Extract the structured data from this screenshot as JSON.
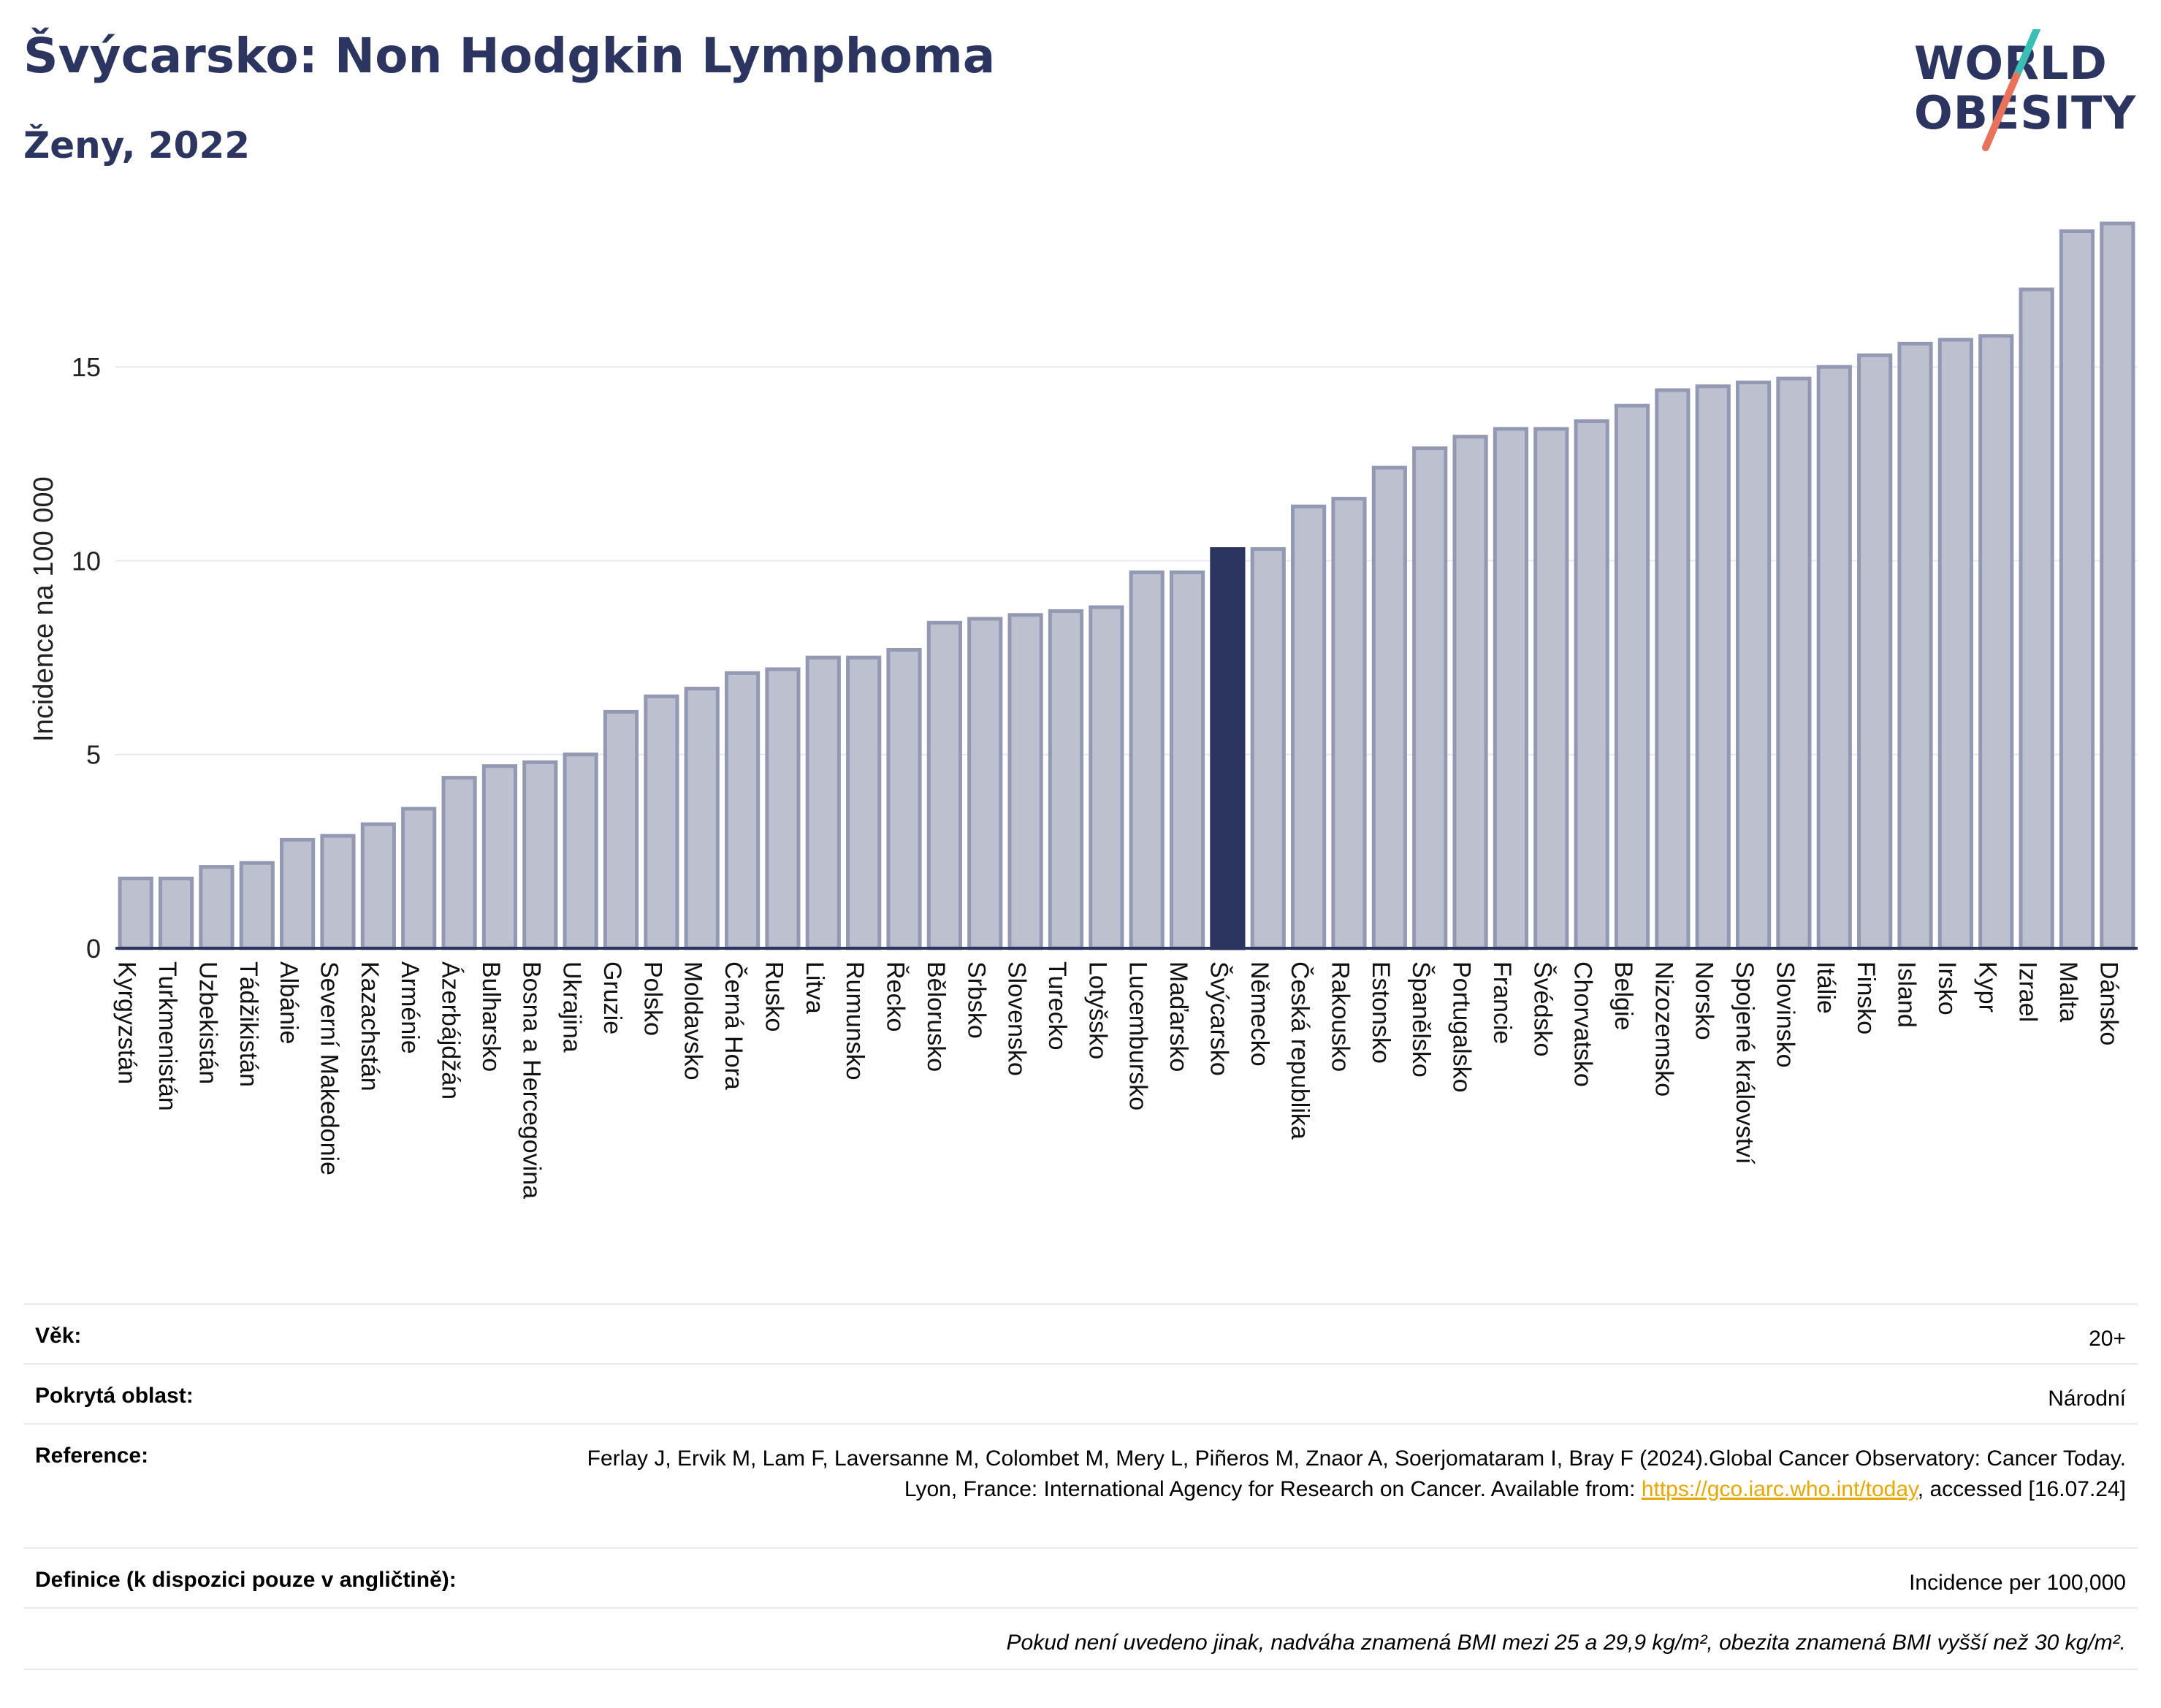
{
  "header": {
    "title": "Švýcarsko: Non Hodgkin Lymphoma",
    "subtitle": "Ženy, 2022"
  },
  "logo": {
    "line1": "WORLD",
    "line2": "OBESITY",
    "colors": {
      "text": "#2b3560",
      "slash_top": "#3bbfb5",
      "slash_bottom": "#e8735a"
    }
  },
  "chart_data": {
    "type": "bar",
    "ylabel": "Incidence na 100 000",
    "ylim": [
      0,
      19
    ],
    "yticks": [
      0,
      5,
      10,
      15
    ],
    "grid": true,
    "highlight": "Švýcarsko",
    "colors": {
      "bar": "#bcc0cf",
      "bar_edge": "#9399b3",
      "highlight": "#2b3560"
    },
    "categories": [
      "Kyrgyzstán",
      "Turkmenistán",
      "Uzbekistán",
      "Tádžikistán",
      "Albánie",
      "Severní Makedonie",
      "Kazachstán",
      "Arménie",
      "Ázerbájdžán",
      "Bulharsko",
      "Bosna a Hercegovina",
      "Ukrajina",
      "Gruzie",
      "Polsko",
      "Moldavsko",
      "Černá Hora",
      "Rusko",
      "Litva",
      "Rumunsko",
      "Řecko",
      "Bělorusko",
      "Srbsko",
      "Slovensko",
      "Turecko",
      "Lotyšsko",
      "Lucembursko",
      "Maďarsko",
      "Švýcarsko",
      "Německo",
      "Česká republika",
      "Rakousko",
      "Estonsko",
      "Španělsko",
      "Portugalsko",
      "Francie",
      "Švédsko",
      "Chorvatsko",
      "Belgie",
      "Nizozemsko",
      "Norsko",
      "Spojené království",
      "Slovinsko",
      "Itálie",
      "Finsko",
      "Island",
      "Irsko",
      "Kypr",
      "Izrael",
      "Malta",
      "Dánsko"
    ],
    "values": [
      1.8,
      1.8,
      2.1,
      2.2,
      2.8,
      2.9,
      3.2,
      3.6,
      4.4,
      4.7,
      4.8,
      5.0,
      6.1,
      6.5,
      6.7,
      7.1,
      7.2,
      7.5,
      7.5,
      7.7,
      8.4,
      8.5,
      8.6,
      8.7,
      8.8,
      9.7,
      9.7,
      10.3,
      10.3,
      11.4,
      11.6,
      12.4,
      12.9,
      13.2,
      13.4,
      13.4,
      13.6,
      14.0,
      14.4,
      14.5,
      14.6,
      14.7,
      15.0,
      15.3,
      15.6,
      15.7,
      15.8,
      17.0,
      18.5,
      18.7
    ]
  },
  "info": {
    "age_label": "Věk:",
    "age_value": "20+",
    "coverage_label": "Pokrytá oblast:",
    "coverage_value": "Národní",
    "reference_label": "Reference:",
    "reference_text_before": "Ferlay J, Ervik M, Lam F, Laversanne M, Colombet M, Mery L, Piñeros M, Znaor A, Soerjomataram I, Bray F (2024).Global Cancer Observatory: Cancer Today. Lyon, France: International Agency for Research on Cancer. Available from:",
    "reference_link": "https://gco.iarc.who.int/today",
    "reference_text_after": ", accessed [16.07.24]",
    "definition_label": "Definice (k dispozici pouze v angličtině):",
    "definition_value": "Incidence per 100,000",
    "footnote": "Pokud není uvedeno jinak, nadváha znamená BMI mezi 25 a 29,9 kg/m², obezita znamená BMI vyšší než 30 kg/m²."
  }
}
